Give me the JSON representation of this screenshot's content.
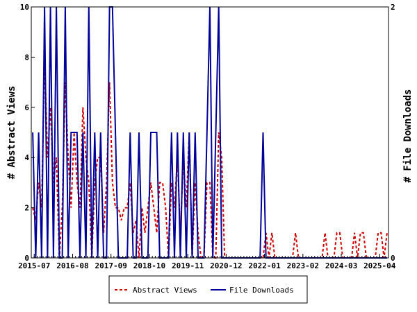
{
  "chart_data": {
    "type": "line",
    "title": "",
    "xlabel": "",
    "ylabel_left": "# Abstract Views",
    "ylabel_right": "# File Downloads",
    "xlim": [
      "2015-06-01",
      "2025-06-30"
    ],
    "y_left_lim": [
      0,
      10
    ],
    "y_right_lim": [
      0,
      2
    ],
    "y_left_ticks": [
      0,
      2,
      4,
      6,
      8,
      10
    ],
    "y_right_ticks": [
      0,
      2
    ],
    "x_tick_labels": [
      "2015-07",
      "2016-08",
      "2017-09",
      "2018-10",
      "2019-11",
      "2020-12",
      "2022-01",
      "2023-02",
      "2024-03",
      "2025-04"
    ],
    "grid": false,
    "legend_position": "bottom",
    "series": [
      {
        "name": "Abstract Views",
        "axis": "left",
        "color": "#cc0000",
        "style": "dashed",
        "x": [
          "2015-06",
          "2015-07",
          "2015-08",
          "2015-09",
          "2015-10",
          "2015-11",
          "2015-12",
          "2016-01",
          "2016-02",
          "2016-03",
          "2016-04",
          "2016-05",
          "2016-06",
          "2016-07",
          "2016-08",
          "2016-09",
          "2016-10",
          "2016-11",
          "2016-12",
          "2017-01",
          "2017-02",
          "2017-03",
          "2017-04",
          "2017-05",
          "2017-06",
          "2017-07",
          "2017-08",
          "2017-09",
          "2017-10",
          "2017-11",
          "2017-12",
          "2018-01",
          "2018-02",
          "2018-03",
          "2018-04",
          "2018-05",
          "2018-06",
          "2018-07",
          "2018-08",
          "2018-09",
          "2018-10",
          "2018-11",
          "2018-12",
          "2019-01",
          "2019-02",
          "2019-03",
          "2019-04",
          "2019-05",
          "2019-06",
          "2019-07",
          "2019-08",
          "2019-09",
          "2019-10",
          "2019-11",
          "2019-12",
          "2020-01",
          "2020-02",
          "2020-03",
          "2020-04",
          "2020-05",
          "2020-06",
          "2020-07",
          "2020-08",
          "2020-09",
          "2020-10",
          "2020-11",
          "2020-12",
          "2021-01",
          "2021-02",
          "2021-03",
          "2021-04",
          "2021-05",
          "2021-06",
          "2021-07",
          "2021-08",
          "2021-09",
          "2021-10",
          "2021-11",
          "2021-12",
          "2022-01",
          "2022-02",
          "2022-03",
          "2022-04",
          "2022-05",
          "2022-06",
          "2022-07",
          "2022-08",
          "2022-09",
          "2022-10",
          "2022-11",
          "2022-12",
          "2023-01",
          "2023-02",
          "2023-03",
          "2023-04",
          "2023-05",
          "2023-06",
          "2023-07",
          "2023-08",
          "2023-09",
          "2023-10",
          "2023-11",
          "2023-12",
          "2024-01",
          "2024-02",
          "2024-03",
          "2024-04",
          "2024-05",
          "2024-06",
          "2024-07",
          "2024-08",
          "2024-09",
          "2024-10",
          "2024-11",
          "2024-12",
          "2025-01",
          "2025-02",
          "2025-03",
          "2025-04",
          "2025-05",
          "2025-06"
        ],
        "y": [
          2,
          1.5,
          3,
          2,
          8,
          4,
          6,
          3,
          4,
          0,
          2,
          7,
          4,
          2,
          5,
          3,
          2,
          6,
          4,
          3,
          0,
          3,
          4,
          4,
          1,
          3,
          7,
          3,
          2,
          2,
          1.5,
          2,
          2,
          3,
          1,
          1.5,
          0,
          2,
          1,
          2,
          3,
          2,
          1,
          3,
          3,
          2,
          0,
          3,
          2,
          4,
          1,
          4,
          2,
          5,
          0,
          3,
          1,
          0,
          0,
          3,
          3,
          0,
          0,
          5,
          4,
          0,
          0,
          0,
          0,
          0,
          0,
          0,
          0,
          0,
          0,
          0,
          0,
          0,
          0,
          1,
          0,
          1,
          0,
          0,
          0,
          0,
          0,
          0,
          0,
          1,
          0,
          0,
          0,
          0,
          0,
          0,
          0,
          0,
          0,
          1,
          0,
          0,
          0,
          1,
          1,
          0,
          0,
          0,
          0,
          1,
          0,
          1,
          1,
          0,
          0,
          0,
          0,
          1,
          1,
          0,
          1
        ]
      },
      {
        "name": "File Downloads",
        "axis": "right",
        "color": "#000099",
        "style": "solid",
        "x": [
          "2015-06",
          "2015-07",
          "2015-08",
          "2015-09",
          "2015-10",
          "2015-11",
          "2015-12",
          "2016-01",
          "2016-02",
          "2016-03",
          "2016-04",
          "2016-05",
          "2016-06",
          "2016-07",
          "2016-08",
          "2016-09",
          "2016-10",
          "2016-11",
          "2016-12",
          "2017-01",
          "2017-02",
          "2017-03",
          "2017-04",
          "2017-05",
          "2017-06",
          "2017-07",
          "2017-08",
          "2017-09",
          "2017-10",
          "2017-11",
          "2017-12",
          "2018-01",
          "2018-02",
          "2018-03",
          "2018-04",
          "2018-05",
          "2018-06",
          "2018-07",
          "2018-08",
          "2018-09",
          "2018-10",
          "2018-11",
          "2018-12",
          "2019-01",
          "2019-02",
          "2019-03",
          "2019-04",
          "2019-05",
          "2019-06",
          "2019-07",
          "2019-08",
          "2019-09",
          "2019-10",
          "2019-11",
          "2019-12",
          "2020-01",
          "2020-02",
          "2020-03",
          "2020-04",
          "2020-05",
          "2020-06",
          "2020-07",
          "2020-08",
          "2020-09",
          "2020-10",
          "2020-11",
          "2020-12",
          "2021-01",
          "2021-02",
          "2021-03",
          "2021-04",
          "2021-05",
          "2021-06",
          "2021-07",
          "2021-08",
          "2021-09",
          "2021-10",
          "2021-11",
          "2021-12",
          "2022-01",
          "2022-02",
          "2022-03",
          "2022-04",
          "2022-05",
          "2022-06",
          "2022-07",
          "2022-08",
          "2022-09",
          "2022-10",
          "2022-11",
          "2022-12",
          "2023-01",
          "2023-02",
          "2023-03",
          "2023-04",
          "2023-05",
          "2023-06",
          "2023-07",
          "2023-08",
          "2023-09",
          "2023-10",
          "2023-11",
          "2023-12",
          "2024-01",
          "2024-02",
          "2024-03",
          "2024-04",
          "2024-05",
          "2024-06",
          "2024-07",
          "2024-08",
          "2024-09",
          "2024-10",
          "2024-11",
          "2024-12",
          "2025-01",
          "2025-02",
          "2025-03",
          "2025-04",
          "2025-05",
          "2025-06"
        ],
        "y": [
          1,
          0,
          1,
          0,
          2,
          0,
          2,
          0,
          2,
          0,
          0,
          2,
          0,
          1,
          1,
          1,
          0,
          1,
          0,
          2,
          0,
          1,
          0,
          1,
          0,
          0,
          2,
          2,
          1,
          0,
          0,
          0,
          0,
          1,
          0,
          0,
          1,
          0,
          0,
          0,
          1,
          1,
          1,
          0,
          0,
          0,
          0,
          1,
          0,
          1,
          0,
          1,
          0,
          1,
          0,
          1,
          0,
          0,
          0,
          1,
          2,
          0,
          1,
          2,
          0,
          0,
          0,
          0,
          0,
          0,
          0,
          0,
          0,
          0,
          0,
          0,
          0,
          0,
          1,
          0,
          0,
          0,
          0,
          0,
          0,
          0,
          0,
          0,
          0,
          0,
          0,
          0,
          0,
          0,
          0,
          0,
          0,
          0,
          0,
          0,
          0,
          0,
          0,
          0,
          0,
          0,
          0,
          0,
          0,
          0,
          0,
          0,
          0,
          0,
          0,
          0,
          0,
          0,
          0,
          0,
          0
        ]
      }
    ]
  }
}
